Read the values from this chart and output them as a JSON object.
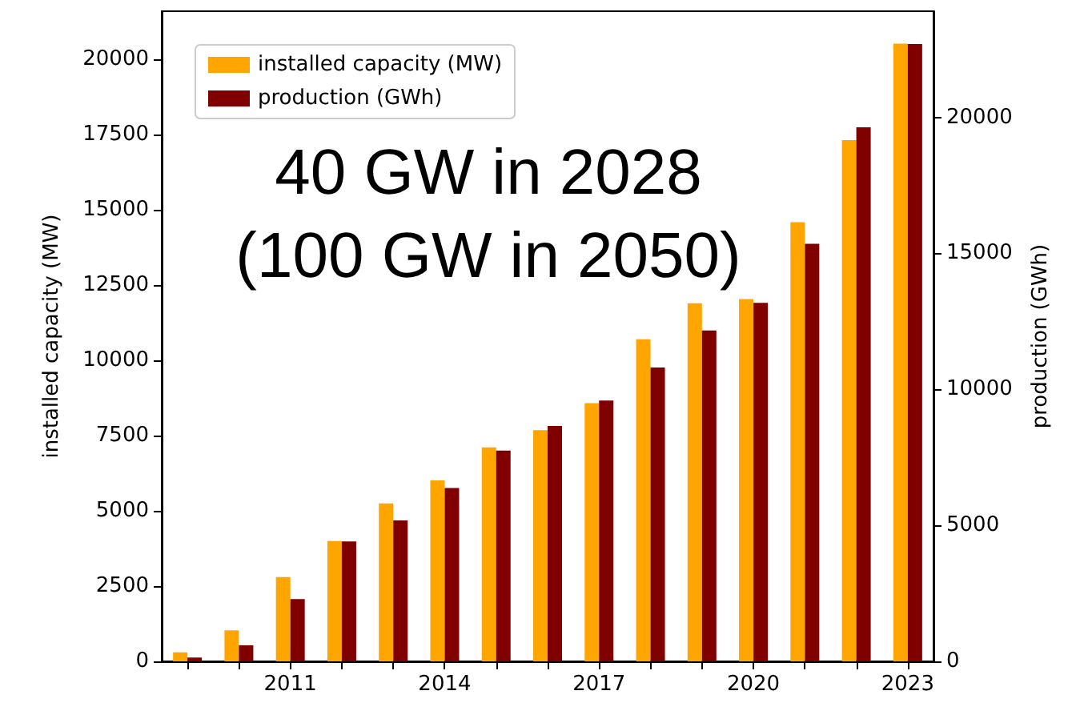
{
  "chart_data": {
    "type": "bar",
    "categories": [
      null,
      null,
      "2011",
      null,
      null,
      "2014",
      null,
      null,
      "2017",
      null,
      null,
      "2020",
      null,
      null,
      "2023"
    ],
    "series": [
      {
        "name": "installed capacity (MW)",
        "color": "#ffa500",
        "values": [
          300,
          1030,
          2800,
          4000,
          5250,
          6010,
          7110,
          7680,
          8580,
          10700,
          11900,
          12040,
          14590,
          17320,
          20520
        ]
      },
      {
        "name": "production (GWh)",
        "color": "#800000",
        "axis": "y2",
        "values": [
          140,
          590,
          2290,
          4410,
          5180,
          6370,
          7750,
          8650,
          9590,
          10800,
          12160,
          13180,
          15350,
          19630,
          22690
        ]
      }
    ],
    "ylabel": "installed capacity (MW)",
    "y2label": "production (GWh)",
    "ylim": [
      0,
      21600
    ],
    "yticks": [
      0,
      2500,
      5000,
      7500,
      10000,
      12500,
      15000,
      17500,
      20000
    ],
    "y2lim": [
      0,
      23900
    ],
    "y2ticks": [
      0,
      5000,
      10000,
      15000,
      20000
    ],
    "annotations": [
      "40 GW in 2028",
      "(100 GW in 2050)"
    ],
    "legend": "top left",
    "grid": false
  }
}
